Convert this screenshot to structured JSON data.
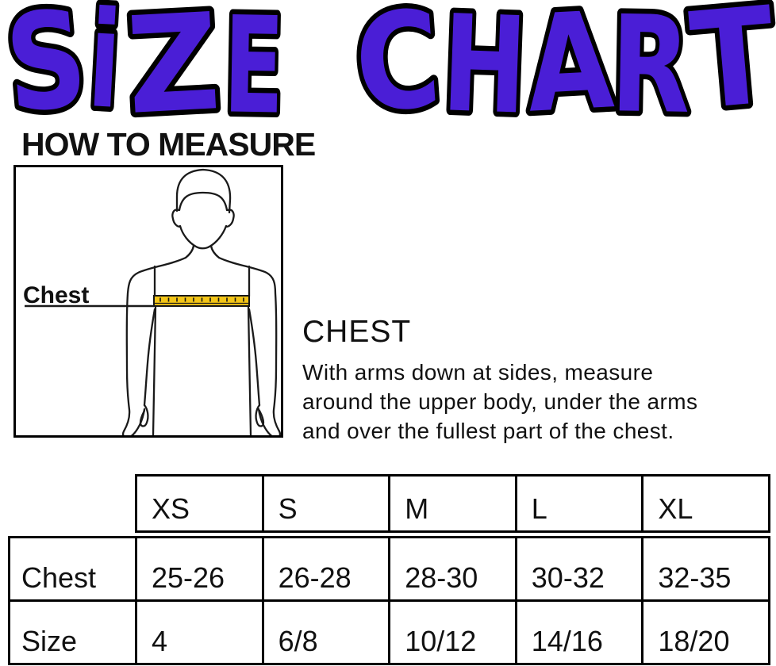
{
  "title": {
    "text": "SiZE CHART",
    "fill_color": "#4A1ED6",
    "outline_color": "#000000"
  },
  "how_to_measure": {
    "heading": "HOW TO MEASURE"
  },
  "figure": {
    "label": "Chest",
    "tape_color": "#F3C517"
  },
  "instruction": {
    "heading": "CHEST",
    "lines": [
      "With arms down at sides, measure",
      "around the upper body, under the arms",
      "and over the fullest part of the chest."
    ]
  },
  "size_table": {
    "columns": [
      "XS",
      "S",
      "M",
      "L",
      "XL"
    ],
    "rows": [
      {
        "label": "Chest",
        "values": [
          "25-26",
          "26-28",
          "28-30",
          "30-32",
          "32-35"
        ]
      },
      {
        "label": "Size",
        "values": [
          "4",
          "6/8",
          "10/12",
          "14/16",
          "18/20"
        ]
      }
    ]
  }
}
